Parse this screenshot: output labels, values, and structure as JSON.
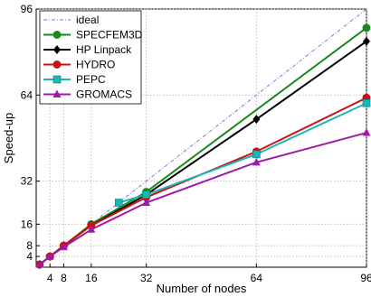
{
  "chart_data": {
    "type": "line",
    "title": "",
    "xlabel": "Number of nodes",
    "ylabel": "Speed-up",
    "xlim": [
      0,
      96
    ],
    "ylim": [
      0,
      96
    ],
    "xticks": [
      4,
      8,
      16,
      32,
      64,
      96
    ],
    "yticks": [
      4,
      8,
      16,
      32,
      64,
      96
    ],
    "grid": true,
    "legend_position": "top-left",
    "series": [
      {
        "name": "ideal",
        "color": "#7a7ad6",
        "marker": "none",
        "dash": true,
        "x": [
          0,
          96
        ],
        "y": [
          0,
          96
        ]
      },
      {
        "name": "SPECFEM3D",
        "color": "#1a8a1a",
        "marker": "circle",
        "x": [
          1,
          4,
          8,
          16,
          32,
          96
        ],
        "y": [
          1,
          4,
          8,
          16,
          28,
          89
        ]
      },
      {
        "name": "HP Linpack",
        "color": "#000000",
        "marker": "diamond",
        "x": [
          1,
          4,
          8,
          16,
          32,
          64,
          96
        ],
        "y": [
          1,
          4,
          8,
          15.5,
          27,
          55,
          84
        ]
      },
      {
        "name": "HYDRO",
        "color": "#cc1111",
        "marker": "circle",
        "x": [
          1,
          4,
          8,
          16,
          32,
          64,
          96
        ],
        "y": [
          1,
          4,
          8,
          15.5,
          26,
          43,
          63
        ]
      },
      {
        "name": "PEPC",
        "color": "#19b6b6",
        "marker": "square",
        "x": [
          24,
          32,
          64,
          96
        ],
        "y": [
          24,
          27,
          42,
          61
        ]
      },
      {
        "name": "GROMACS",
        "color": "#a01aaa",
        "marker": "triangle",
        "x": [
          1,
          4,
          8,
          16,
          32,
          64,
          96
        ],
        "y": [
          1,
          4,
          7.5,
          14,
          24,
          39,
          50
        ]
      }
    ]
  }
}
